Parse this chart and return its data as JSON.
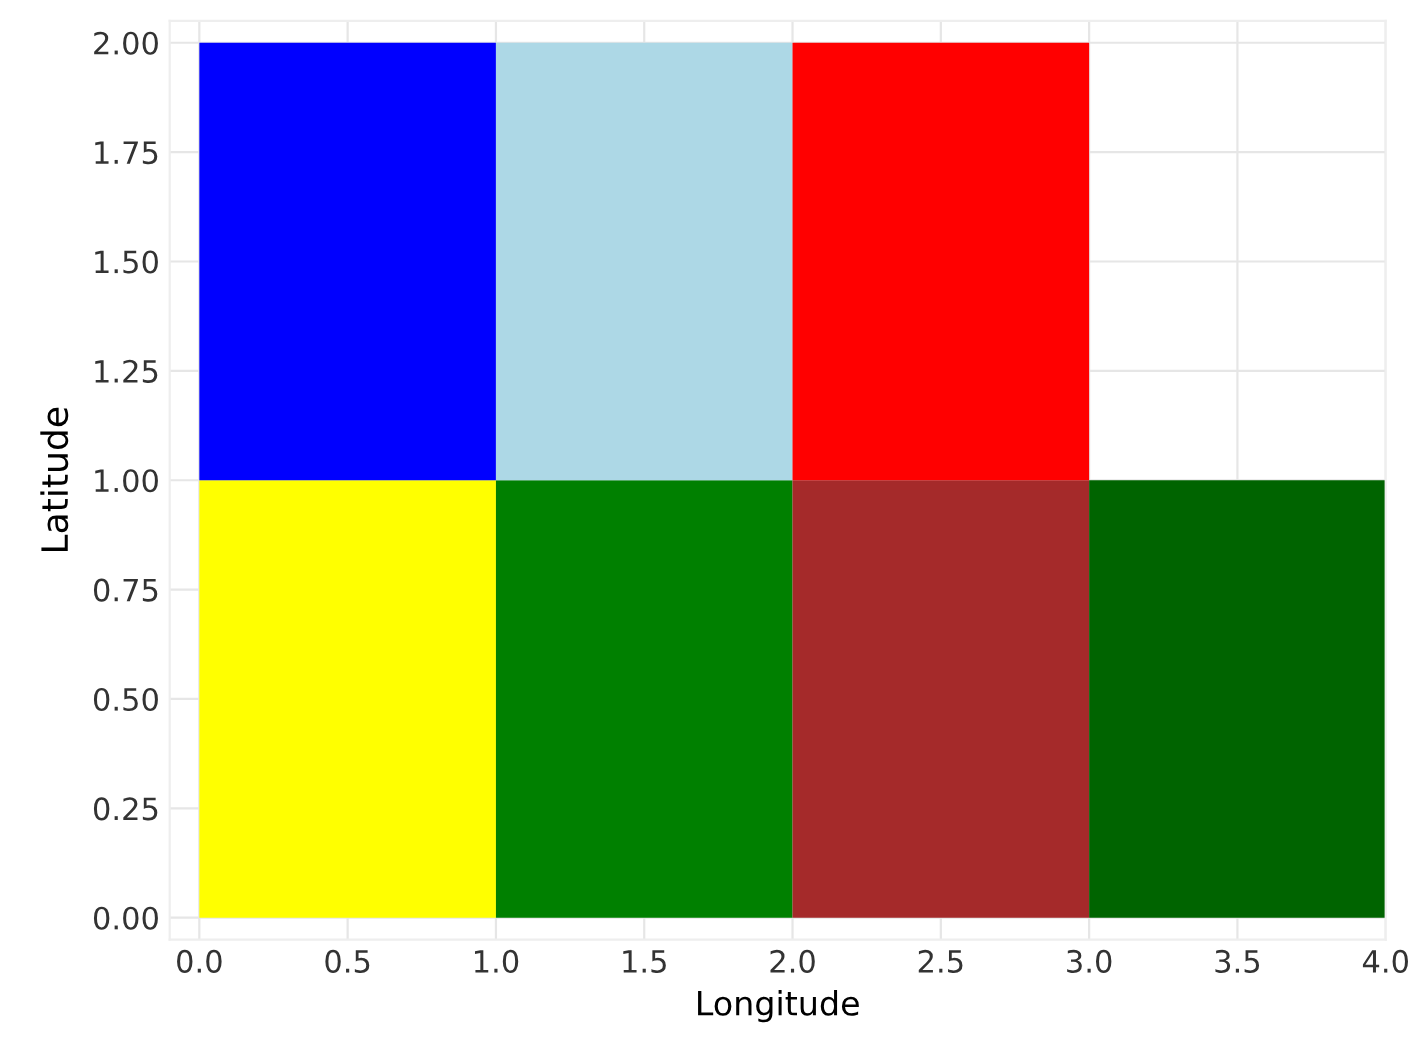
{
  "chart_data": {
    "type": "bar",
    "stacked": true,
    "xlabel": "Longitude",
    "ylabel": "Latitude",
    "x": [
      0.5,
      1.5,
      2.5,
      3.5
    ],
    "series": [
      {
        "colors": [
          "#ffff00",
          "#008000",
          "#a52a2a",
          "#006400"
        ],
        "values": [
          1,
          1,
          1,
          1
        ]
      },
      {
        "colors": [
          "#0000ff",
          "#add8e6",
          "#ff0000",
          null
        ],
        "values": [
          1,
          1,
          1,
          null
        ]
      }
    ],
    "xlim": [
      -0.1,
      4.0
    ],
    "ylim": [
      -0.05,
      2.05
    ],
    "xticks": [
      {
        "value": 0,
        "label": "0.0"
      },
      {
        "value": 0.5,
        "label": "0.5"
      },
      {
        "value": 1,
        "label": "1.0"
      },
      {
        "value": 1.5,
        "label": "1.5"
      },
      {
        "value": 2,
        "label": "2.0"
      },
      {
        "value": 2.5,
        "label": "2.5"
      },
      {
        "value": 3,
        "label": "3.0"
      },
      {
        "value": 3.5,
        "label": "3.5"
      },
      {
        "value": 4,
        "label": "4.0"
      }
    ],
    "yticks": [
      {
        "value": 0,
        "label": "0.00"
      },
      {
        "value": 0.25,
        "label": "0.25"
      },
      {
        "value": 0.5,
        "label": "0.50"
      },
      {
        "value": 0.75,
        "label": "0.75"
      },
      {
        "value": 1,
        "label": "1.00"
      },
      {
        "value": 1.25,
        "label": "1.25"
      },
      {
        "value": 1.5,
        "label": "1.50"
      },
      {
        "value": 1.75,
        "label": "1.75"
      },
      {
        "value": 2,
        "label": "2.00"
      }
    ],
    "grid": true
  }
}
